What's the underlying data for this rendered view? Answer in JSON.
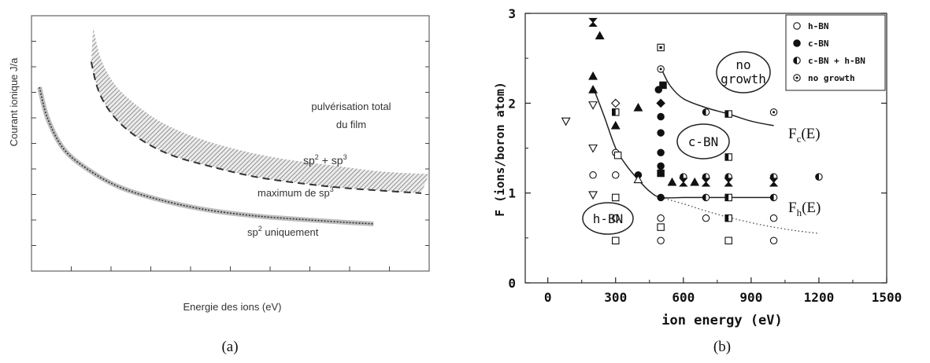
{
  "chart_data": [
    {
      "type": "area",
      "panel_label": "(a)",
      "xlabel": "Energie des ions (eV)",
      "ylabel": "Courant ionique J/a",
      "series": [
        {
          "name": "pulvérisation total du film",
          "values": [
            {
              "x": 0.155,
              "y": 0.955
            },
            {
              "x": 0.175,
              "y": 0.83
            },
            {
              "x": 0.21,
              "y": 0.73
            },
            {
              "x": 0.26,
              "y": 0.655
            },
            {
              "x": 0.33,
              "y": 0.58
            },
            {
              "x": 0.42,
              "y": 0.52
            },
            {
              "x": 0.52,
              "y": 0.475
            },
            {
              "x": 0.63,
              "y": 0.44
            },
            {
              "x": 0.75,
              "y": 0.415
            },
            {
              "x": 0.88,
              "y": 0.39
            },
            {
              "x": 1.0,
              "y": 0.38
            }
          ]
        },
        {
          "name": "sp2 + sp3 boundary",
          "values": [
            {
              "x": 0.15,
              "y": 0.82
            },
            {
              "x": 0.17,
              "y": 0.7
            },
            {
              "x": 0.21,
              "y": 0.6
            },
            {
              "x": 0.27,
              "y": 0.52
            },
            {
              "x": 0.35,
              "y": 0.455
            },
            {
              "x": 0.45,
              "y": 0.41
            },
            {
              "x": 0.56,
              "y": 0.37
            },
            {
              "x": 0.67,
              "y": 0.345
            },
            {
              "x": 0.79,
              "y": 0.325
            },
            {
              "x": 0.91,
              "y": 0.312
            },
            {
              "x": 0.98,
              "y": 0.305
            }
          ]
        },
        {
          "name": "sp2 uniquement",
          "values": [
            {
              "x": 0.02,
              "y": 0.72
            },
            {
              "x": 0.04,
              "y": 0.6
            },
            {
              "x": 0.08,
              "y": 0.48
            },
            {
              "x": 0.14,
              "y": 0.4
            },
            {
              "x": 0.22,
              "y": 0.33
            },
            {
              "x": 0.32,
              "y": 0.28
            },
            {
              "x": 0.44,
              "y": 0.24
            },
            {
              "x": 0.57,
              "y": 0.215
            },
            {
              "x": 0.7,
              "y": 0.2
            },
            {
              "x": 0.8,
              "y": 0.19
            },
            {
              "x": 0.86,
              "y": 0.185
            }
          ]
        }
      ],
      "annotations": {
        "total_line1": "pulvérisation total",
        "total_line2": "du film",
        "sp2sp3_a": "sp",
        "sp2sp3_sup1": "2",
        "sp2sp3_b": " + sp",
        "sp2sp3_sup2": "3",
        "max_a": "maximum de sp",
        "max_sup": "3",
        "uniq_a": "sp",
        "uniq_sup": "2",
        "uniq_b": " uniquement"
      },
      "xlim": [
        0,
        1
      ],
      "ylim": [
        0,
        1
      ],
      "xticks": 10,
      "yticks": 10
    },
    {
      "type": "scatter",
      "panel_label": "(b)",
      "xlabel": "ion energy (eV)",
      "ylabel": "F (ions/boron atom)",
      "xlim": [
        -100,
        1500
      ],
      "ylim": [
        0,
        3
      ],
      "xticks": [
        "0",
        "300",
        "600",
        "900",
        "1200",
        "1500"
      ],
      "xtick_values": [
        0,
        300,
        600,
        900,
        1200,
        1500
      ],
      "yticks": [
        "0",
        "1",
        "2",
        "3"
      ],
      "ytick_values": [
        0,
        1,
        2,
        3
      ],
      "legend_position": "top-right",
      "legend": [
        {
          "label": "h-BN",
          "symbol": "open-circle"
        },
        {
          "label": "c-BN",
          "symbol": "filled-circle"
        },
        {
          "label": "c-BN + h-BN",
          "symbol": "half-circle"
        },
        {
          "label": "no growth",
          "symbol": "dotted-circle"
        }
      ],
      "region_labels": {
        "no_growth_1": "no",
        "no_growth_2": "growth",
        "cbn": "c-BN",
        "hbn": "h-BN"
      },
      "curve_labels": {
        "fc": "F",
        "fc_sub": "c",
        "fc_arg": "(E)",
        "fh": "F",
        "fh_sub": "h",
        "fh_arg": "(E)"
      },
      "curves": {
        "fc": [
          [
            500,
            2.4
          ],
          [
            540,
            2.2
          ],
          [
            600,
            2.05
          ],
          [
            700,
            1.95
          ],
          [
            800,
            1.88
          ],
          [
            900,
            1.8
          ],
          [
            1000,
            1.75
          ]
        ],
        "fh": [
          [
            200,
            2.18
          ],
          [
            250,
            1.85
          ],
          [
            300,
            1.5
          ],
          [
            350,
            1.3
          ],
          [
            400,
            1.15
          ],
          [
            450,
            1.02
          ],
          [
            500,
            0.95
          ],
          [
            600,
            0.95
          ],
          [
            700,
            0.95
          ],
          [
            800,
            0.95
          ],
          [
            900,
            0.95
          ],
          [
            1000,
            0.95
          ]
        ],
        "dotted": [
          [
            500,
            0.95
          ],
          [
            600,
            0.88
          ],
          [
            700,
            0.8
          ],
          [
            800,
            0.73
          ],
          [
            900,
            0.67
          ],
          [
            1000,
            0.62
          ],
          [
            1100,
            0.58
          ],
          [
            1200,
            0.55
          ]
        ]
      },
      "points": [
        {
          "x": 200,
          "y": 2.9,
          "m": "hourglass"
        },
        {
          "x": 230,
          "y": 2.75,
          "m": "tri-fill"
        },
        {
          "x": 80,
          "y": 1.8,
          "m": "tri-down-open"
        },
        {
          "x": 200,
          "y": 2.3,
          "m": "tri-fill"
        },
        {
          "x": 200,
          "y": 2.15,
          "m": "tri-fill"
        },
        {
          "x": 200,
          "y": 1.98,
          "m": "tri-down-open"
        },
        {
          "x": 200,
          "y": 1.5,
          "m": "tri-down-open"
        },
        {
          "x": 200,
          "y": 1.2,
          "m": "circle-open"
        },
        {
          "x": 200,
          "y": 0.98,
          "m": "tri-down-open"
        },
        {
          "x": 300,
          "y": 2.0,
          "m": "diamond-open"
        },
        {
          "x": 300,
          "y": 1.9,
          "m": "square-half"
        },
        {
          "x": 300,
          "y": 1.75,
          "m": "tri-fill"
        },
        {
          "x": 300,
          "y": 1.45,
          "m": "circle-open"
        },
        {
          "x": 310,
          "y": 1.42,
          "m": "square-open"
        },
        {
          "x": 300,
          "y": 1.2,
          "m": "circle-open"
        },
        {
          "x": 300,
          "y": 0.95,
          "m": "square-open"
        },
        {
          "x": 300,
          "y": 0.72,
          "m": "circle-open"
        },
        {
          "x": 300,
          "y": 0.47,
          "m": "square-open"
        },
        {
          "x": 400,
          "y": 1.95,
          "m": "tri-fill"
        },
        {
          "x": 400,
          "y": 1.2,
          "m": "circle-fill"
        },
        {
          "x": 400,
          "y": 1.15,
          "m": "tri-open"
        },
        {
          "x": 500,
          "y": 2.62,
          "m": "square-dot"
        },
        {
          "x": 500,
          "y": 2.38,
          "m": "circle-dot"
        },
        {
          "x": 510,
          "y": 2.2,
          "m": "square-fill"
        },
        {
          "x": 490,
          "y": 2.15,
          "m": "circle-fill"
        },
        {
          "x": 500,
          "y": 2.0,
          "m": "diamond-fill"
        },
        {
          "x": 500,
          "y": 1.85,
          "m": "circle-fill"
        },
        {
          "x": 500,
          "y": 1.67,
          "m": "circle-fill"
        },
        {
          "x": 500,
          "y": 1.45,
          "m": "circle-fill"
        },
        {
          "x": 500,
          "y": 1.3,
          "m": "circle-fill"
        },
        {
          "x": 500,
          "y": 1.22,
          "m": "square-fill"
        },
        {
          "x": 500,
          "y": 0.95,
          "m": "circle-fill"
        },
        {
          "x": 500,
          "y": 0.72,
          "m": "circle-open"
        },
        {
          "x": 500,
          "y": 0.62,
          "m": "square-open"
        },
        {
          "x": 500,
          "y": 0.47,
          "m": "circle-open"
        },
        {
          "x": 550,
          "y": 1.12,
          "m": "tri-fill"
        },
        {
          "x": 600,
          "y": 1.18,
          "m": "circle-half"
        },
        {
          "x": 600,
          "y": 1.12,
          "m": "hourglass"
        },
        {
          "x": 650,
          "y": 1.12,
          "m": "tri-fill"
        },
        {
          "x": 700,
          "y": 1.9,
          "m": "circle-half"
        },
        {
          "x": 700,
          "y": 1.18,
          "m": "circle-half"
        },
        {
          "x": 700,
          "y": 1.12,
          "m": "hourglass"
        },
        {
          "x": 700,
          "y": 0.95,
          "m": "circle-half"
        },
        {
          "x": 700,
          "y": 0.72,
          "m": "circle-open"
        },
        {
          "x": 800,
          "y": 1.88,
          "m": "square-half"
        },
        {
          "x": 800,
          "y": 1.4,
          "m": "square-half"
        },
        {
          "x": 800,
          "y": 1.18,
          "m": "circle-half"
        },
        {
          "x": 800,
          "y": 1.12,
          "m": "hourglass"
        },
        {
          "x": 800,
          "y": 0.95,
          "m": "square-half"
        },
        {
          "x": 800,
          "y": 0.72,
          "m": "square-half"
        },
        {
          "x": 800,
          "y": 0.47,
          "m": "square-open"
        },
        {
          "x": 1000,
          "y": 1.9,
          "m": "circle-dot"
        },
        {
          "x": 1000,
          "y": 1.18,
          "m": "circle-half"
        },
        {
          "x": 1000,
          "y": 1.12,
          "m": "hourglass"
        },
        {
          "x": 1000,
          "y": 0.95,
          "m": "circle-half"
        },
        {
          "x": 1000,
          "y": 0.72,
          "m": "circle-open"
        },
        {
          "x": 1000,
          "y": 0.47,
          "m": "circle-open"
        },
        {
          "x": 1200,
          "y": 1.18,
          "m": "circle-half"
        }
      ]
    }
  ]
}
